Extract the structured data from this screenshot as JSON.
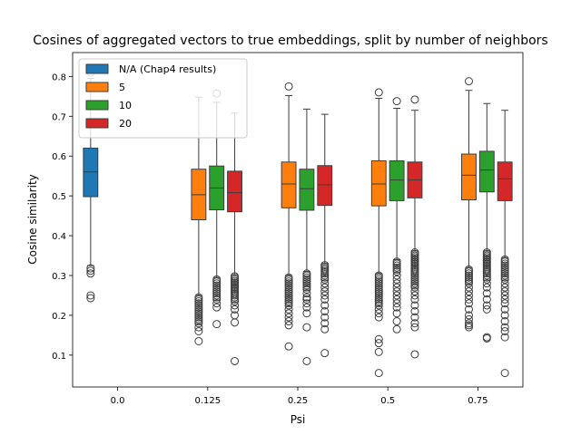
{
  "chart_data": {
    "type": "box",
    "title": "Cosines of aggregated vectors to true embeddings, split by number of neighbors",
    "xlabel": "Psi",
    "ylabel": "Cosine similarity",
    "categories": [
      "0.0",
      "0.125",
      "0.25",
      "0.5",
      "0.75"
    ],
    "ylim": [
      0.02,
      0.86
    ],
    "yticks": [
      0.1,
      0.2,
      0.3,
      0.4,
      0.5,
      0.6,
      0.7,
      0.8
    ],
    "legend_position": "top-left",
    "series": [
      {
        "name": "N/A (Chap4 results)",
        "color": "#1f77b4",
        "boxes": [
          {
            "category": "0.0",
            "whislo": 0.325,
            "q1": 0.498,
            "median": 0.56,
            "q3": 0.62,
            "whishi": 0.795,
            "fliers": [
              0.318,
              0.312,
              0.305,
              0.25,
              0.243,
              0.81,
              0.818
            ]
          }
        ]
      },
      {
        "name": "5",
        "color": "#ff7f0e",
        "boxes": [
          {
            "category": "0.125",
            "whislo": 0.25,
            "q1": 0.44,
            "median": 0.503,
            "q3": 0.567,
            "whishi": 0.748,
            "fliers": [
              0.245,
              0.24,
              0.235,
              0.23,
              0.225,
              0.22,
              0.215,
              0.21,
              0.205,
              0.2,
              0.195,
              0.19,
              0.185,
              0.18,
              0.17,
              0.16,
              0.135
            ]
          },
          {
            "category": "0.25",
            "whislo": 0.3,
            "q1": 0.47,
            "median": 0.53,
            "q3": 0.585,
            "whishi": 0.752,
            "fliers": [
              0.295,
              0.29,
              0.285,
              0.28,
              0.275,
              0.27,
              0.265,
              0.26,
              0.255,
              0.25,
              0.245,
              0.24,
              0.235,
              0.23,
              0.225,
              0.215,
              0.205,
              0.195,
              0.185,
              0.175,
              0.122,
              0.775
            ]
          },
          {
            "category": "0.5",
            "whislo": 0.305,
            "q1": 0.475,
            "median": 0.53,
            "q3": 0.588,
            "whishi": 0.745,
            "fliers": [
              0.3,
              0.295,
              0.29,
              0.285,
              0.28,
              0.275,
              0.27,
              0.265,
              0.26,
              0.255,
              0.25,
              0.245,
              0.24,
              0.235,
              0.23,
              0.225,
              0.215,
              0.205,
              0.195,
              0.14,
              0.13,
              0.108,
              0.055,
              0.76
            ]
          },
          {
            "category": "0.75",
            "whislo": 0.32,
            "q1": 0.49,
            "median": 0.552,
            "q3": 0.605,
            "whishi": 0.765,
            "fliers": [
              0.315,
              0.31,
              0.305,
              0.3,
              0.295,
              0.29,
              0.285,
              0.28,
              0.27,
              0.26,
              0.25,
              0.24,
              0.23,
              0.215,
              0.2,
              0.19,
              0.18,
              0.175,
              0.17,
              0.788
            ]
          }
        ]
      },
      {
        "name": "10",
        "color": "#2ca02c",
        "boxes": [
          {
            "category": "0.125",
            "whislo": 0.295,
            "q1": 0.465,
            "median": 0.52,
            "q3": 0.575,
            "whishi": 0.735,
            "fliers": [
              0.29,
              0.285,
              0.28,
              0.275,
              0.27,
              0.265,
              0.26,
              0.255,
              0.25,
              0.245,
              0.24,
              0.23,
              0.22,
              0.178,
              0.757
            ]
          },
          {
            "category": "0.25",
            "whislo": 0.31,
            "q1": 0.464,
            "median": 0.518,
            "q3": 0.567,
            "whishi": 0.718,
            "fliers": [
              0.305,
              0.3,
              0.295,
              0.29,
              0.285,
              0.28,
              0.275,
              0.27,
              0.265,
              0.255,
              0.245,
              0.24,
              0.23,
              0.22,
              0.205,
              0.17,
              0.085
            ]
          },
          {
            "category": "0.5",
            "whislo": 0.34,
            "q1": 0.488,
            "median": 0.54,
            "q3": 0.588,
            "whishi": 0.72,
            "fliers": [
              0.335,
              0.33,
              0.325,
              0.32,
              0.315,
              0.31,
              0.3,
              0.29,
              0.28,
              0.27,
              0.26,
              0.25,
              0.24,
              0.23,
              0.22,
              0.205,
              0.185,
              0.165,
              0.738
            ]
          },
          {
            "category": "0.75",
            "whislo": 0.362,
            "q1": 0.51,
            "median": 0.565,
            "q3": 0.612,
            "whishi": 0.732,
            "fliers": [
              0.358,
              0.354,
              0.35,
              0.346,
              0.342,
              0.338,
              0.334,
              0.33,
              0.326,
              0.322,
              0.318,
              0.314,
              0.31,
              0.305,
              0.3,
              0.295,
              0.29,
              0.28,
              0.27,
              0.255,
              0.24,
              0.225,
              0.215,
              0.145,
              0.142
            ]
          }
        ]
      },
      {
        "name": "20",
        "color": "#d62728",
        "boxes": [
          {
            "category": "0.125",
            "whislo": 0.302,
            "q1": 0.46,
            "median": 0.508,
            "q3": 0.562,
            "whishi": 0.708,
            "fliers": [
              0.298,
              0.294,
              0.29,
              0.286,
              0.282,
              0.278,
              0.274,
              0.27,
              0.266,
              0.262,
              0.258,
              0.254,
              0.25,
              0.245,
              0.24,
              0.235,
              0.225,
              0.215,
              0.2,
              0.182,
              0.085
            ]
          },
          {
            "category": "0.25",
            "whislo": 0.33,
            "q1": 0.476,
            "median": 0.528,
            "q3": 0.576,
            "whishi": 0.705,
            "fliers": [
              0.326,
              0.322,
              0.318,
              0.314,
              0.31,
              0.305,
              0.3,
              0.295,
              0.29,
              0.28,
              0.27,
              0.26,
              0.25,
              0.24,
              0.225,
              0.21,
              0.195,
              0.18,
              0.165,
              0.105
            ]
          },
          {
            "category": "0.5",
            "whislo": 0.362,
            "q1": 0.495,
            "median": 0.54,
            "q3": 0.585,
            "whishi": 0.715,
            "fliers": [
              0.358,
              0.354,
              0.35,
              0.346,
              0.342,
              0.338,
              0.334,
              0.33,
              0.326,
              0.322,
              0.318,
              0.314,
              0.31,
              0.305,
              0.3,
              0.295,
              0.29,
              0.285,
              0.28,
              0.275,
              0.27,
              0.26,
              0.25,
              0.24,
              0.225,
              0.21,
              0.195,
              0.18,
              0.17,
              0.102,
              0.742
            ]
          },
          {
            "category": "0.75",
            "whislo": 0.345,
            "q1": 0.488,
            "median": 0.543,
            "q3": 0.585,
            "whishi": 0.715,
            "fliers": [
              0.34,
              0.335,
              0.33,
              0.325,
              0.32,
              0.315,
              0.31,
              0.305,
              0.3,
              0.295,
              0.29,
              0.28,
              0.27,
              0.26,
              0.25,
              0.24,
              0.23,
              0.215,
              0.2,
              0.185,
              0.17,
              0.16,
              0.145,
              0.055
            ]
          }
        ]
      }
    ]
  }
}
